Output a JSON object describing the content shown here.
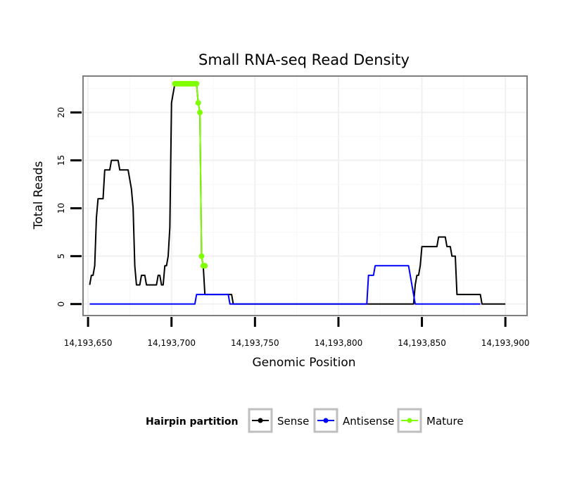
{
  "chart_data": {
    "type": "line",
    "title": "Small RNA-seq Read Density",
    "xlabel": "Genomic Position",
    "ylabel": "Total Reads",
    "xlim": [
      14193647,
      14193913
    ],
    "ylim": [
      -1.2,
      23.8
    ],
    "x_ticks": [
      14193650,
      14193700,
      14193750,
      14193800,
      14193850,
      14193900
    ],
    "x_tick_labels": [
      "14,193,650",
      "14,193,700",
      "14,193,750",
      "14,193,800",
      "14,193,850",
      "14,193,900"
    ],
    "y_ticks": [
      0,
      5,
      10,
      15,
      20
    ],
    "y_tick_labels": [
      "0",
      "5",
      "10",
      "15",
      "20"
    ],
    "grid": true,
    "legend": {
      "title": "Hairpin partition",
      "position": "bottom"
    },
    "series": [
      {
        "name": "Sense",
        "color": "#000000",
        "points": [
          [
            14193651,
            2
          ],
          [
            14193652,
            3
          ],
          [
            14193653,
            3
          ],
          [
            14193654,
            4
          ],
          [
            14193655,
            9
          ],
          [
            14193656,
            11
          ],
          [
            14193657,
            11
          ],
          [
            14193658,
            11
          ],
          [
            14193659,
            11
          ],
          [
            14193660,
            14
          ],
          [
            14193661,
            14
          ],
          [
            14193662,
            14
          ],
          [
            14193663,
            14
          ],
          [
            14193664,
            15
          ],
          [
            14193665,
            15
          ],
          [
            14193666,
            15
          ],
          [
            14193667,
            15
          ],
          [
            14193668,
            15
          ],
          [
            14193669,
            14
          ],
          [
            14193670,
            14
          ],
          [
            14193671,
            14
          ],
          [
            14193672,
            14
          ],
          [
            14193673,
            14
          ],
          [
            14193674,
            14
          ],
          [
            14193675,
            13
          ],
          [
            14193676,
            12
          ],
          [
            14193677,
            10
          ],
          [
            14193678,
            4
          ],
          [
            14193679,
            2
          ],
          [
            14193680,
            2
          ],
          [
            14193681,
            2
          ],
          [
            14193682,
            3
          ],
          [
            14193683,
            3
          ],
          [
            14193684,
            3
          ],
          [
            14193685,
            2
          ],
          [
            14193686,
            2
          ],
          [
            14193687,
            2
          ],
          [
            14193688,
            2
          ],
          [
            14193689,
            2
          ],
          [
            14193690,
            2
          ],
          [
            14193691,
            2
          ],
          [
            14193692,
            3
          ],
          [
            14193693,
            3
          ],
          [
            14193694,
            2
          ],
          [
            14193695,
            2
          ],
          [
            14193696,
            4
          ],
          [
            14193697,
            4
          ],
          [
            14193698,
            5
          ],
          [
            14193699,
            8
          ],
          [
            14193700,
            21
          ],
          [
            14193701,
            22
          ],
          [
            14193702,
            23
          ],
          [
            14193703,
            23
          ],
          [
            14193704,
            23
          ],
          [
            14193705,
            23
          ],
          [
            14193706,
            23
          ],
          [
            14193707,
            23
          ],
          [
            14193708,
            23
          ],
          [
            14193709,
            23
          ],
          [
            14193710,
            23
          ],
          [
            14193711,
            23
          ],
          [
            14193712,
            23
          ],
          [
            14193713,
            23
          ],
          [
            14193714,
            23
          ],
          [
            14193715,
            23
          ],
          [
            14193716,
            21
          ],
          [
            14193717,
            20
          ],
          [
            14193718,
            5
          ],
          [
            14193719,
            4
          ],
          [
            14193720,
            1
          ],
          [
            14193725,
            1
          ],
          [
            14193730,
            1
          ],
          [
            14193736,
            1
          ],
          [
            14193737,
            0
          ],
          [
            14193760,
            0
          ],
          [
            14193800,
            0
          ],
          [
            14193840,
            0
          ],
          [
            14193845,
            0
          ],
          [
            14193846,
            2
          ],
          [
            14193847,
            3
          ],
          [
            14193848,
            3
          ],
          [
            14193849,
            4
          ],
          [
            14193850,
            6
          ],
          [
            14193851,
            6
          ],
          [
            14193852,
            6
          ],
          [
            14193853,
            6
          ],
          [
            14193854,
            6
          ],
          [
            14193855,
            6
          ],
          [
            14193856,
            6
          ],
          [
            14193857,
            6
          ],
          [
            14193858,
            6
          ],
          [
            14193859,
            6
          ],
          [
            14193860,
            7
          ],
          [
            14193861,
            7
          ],
          [
            14193862,
            7
          ],
          [
            14193863,
            7
          ],
          [
            14193864,
            7
          ],
          [
            14193865,
            6
          ],
          [
            14193866,
            6
          ],
          [
            14193867,
            6
          ],
          [
            14193868,
            5
          ],
          [
            14193869,
            5
          ],
          [
            14193870,
            5
          ],
          [
            14193871,
            1
          ],
          [
            14193875,
            1
          ],
          [
            14193880,
            1
          ],
          [
            14193885,
            1
          ],
          [
            14193886,
            0
          ],
          [
            14193890,
            0
          ],
          [
            14193895,
            0
          ],
          [
            14193900,
            0
          ]
        ]
      },
      {
        "name": "Antisense",
        "color": "#0000ff",
        "points": [
          [
            14193651,
            0
          ],
          [
            14193670,
            0
          ],
          [
            14193690,
            0
          ],
          [
            14193700,
            0
          ],
          [
            14193710,
            0
          ],
          [
            14193714,
            0
          ],
          [
            14193715,
            1
          ],
          [
            14193720,
            1
          ],
          [
            14193725,
            1
          ],
          [
            14193730,
            1
          ],
          [
            14193734,
            1
          ],
          [
            14193735,
            0
          ],
          [
            14193760,
            0
          ],
          [
            14193790,
            0
          ],
          [
            14193817,
            0
          ],
          [
            14193818,
            3
          ],
          [
            14193819,
            3
          ],
          [
            14193820,
            3
          ],
          [
            14193821,
            3
          ],
          [
            14193822,
            4
          ],
          [
            14193830,
            4
          ],
          [
            14193838,
            4
          ],
          [
            14193842,
            4
          ],
          [
            14193843,
            3
          ],
          [
            14193844,
            2
          ],
          [
            14193845,
            1
          ],
          [
            14193846,
            0
          ],
          [
            14193860,
            0
          ],
          [
            14193875,
            0
          ],
          [
            14193885,
            0
          ]
        ]
      },
      {
        "name": "Mature",
        "color": "#80ff00",
        "points": [
          [
            14193702,
            23
          ],
          [
            14193703,
            23
          ],
          [
            14193704,
            23
          ],
          [
            14193705,
            23
          ],
          [
            14193706,
            23
          ],
          [
            14193707,
            23
          ],
          [
            14193708,
            23
          ],
          [
            14193709,
            23
          ],
          [
            14193710,
            23
          ],
          [
            14193711,
            23
          ],
          [
            14193712,
            23
          ],
          [
            14193713,
            23
          ],
          [
            14193714,
            23
          ],
          [
            14193715,
            23
          ],
          [
            14193716,
            21
          ],
          [
            14193717,
            20
          ],
          [
            14193718,
            5
          ],
          [
            14193719,
            4
          ],
          [
            14193720,
            4
          ]
        ],
        "markers_only": true
      }
    ]
  }
}
